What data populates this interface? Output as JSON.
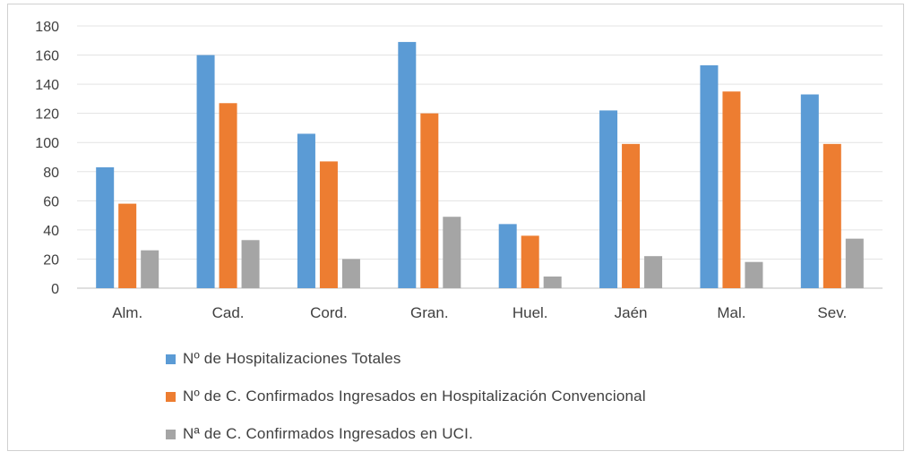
{
  "chart_data": {
    "type": "bar",
    "categories": [
      "Alm.",
      "Cad.",
      "Cord.",
      "Gran.",
      "Huel.",
      "Jaén",
      "Mal.",
      "Sev."
    ],
    "series": [
      {
        "name": "Nº de Hospitalizaciones Totales",
        "color": "#5b9bd5",
        "values": [
          83,
          160,
          106,
          169,
          44,
          122,
          153,
          133
        ]
      },
      {
        "name": "Nº de C. Confirmados Ingresados en Hospitalización Convencional",
        "color": "#ed7d31",
        "values": [
          58,
          127,
          87,
          120,
          36,
          99,
          135,
          99
        ]
      },
      {
        "name": "Nª de C. Confirmados Ingresados en UCI.",
        "color": "#a5a5a5",
        "values": [
          26,
          33,
          20,
          49,
          8,
          22,
          18,
          34
        ]
      }
    ],
    "yticks": [
      0,
      20,
      40,
      60,
      80,
      100,
      120,
      140,
      160,
      180
    ],
    "ylim": [
      0,
      180
    ],
    "grid": true,
    "legend_position": "bottom"
  }
}
